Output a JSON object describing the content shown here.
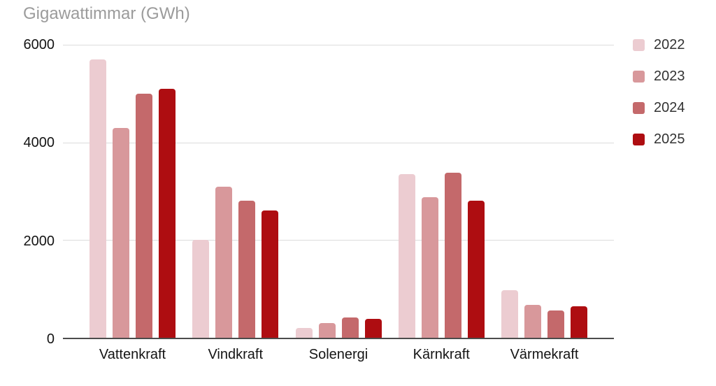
{
  "title": "Gigawattimmar (GWh)",
  "chart_data": {
    "type": "bar",
    "title": "Gigawattimmar (GWh)",
    "xlabel": "",
    "ylabel": "Gigawattimmar (GWh)",
    "categories": [
      "Vattenkraft",
      "Vindkraft",
      "Solenergi",
      "Kärnkraft",
      "Värmekraft"
    ],
    "series": [
      {
        "name": "2022",
        "color": "#ecccd1",
        "values": [
          5700,
          2000,
          200,
          3350,
          980
        ]
      },
      {
        "name": "2023",
        "color": "#d8989b",
        "values": [
          4300,
          3100,
          300,
          2880,
          680
        ]
      },
      {
        "name": "2024",
        "color": "#c4696b",
        "values": [
          5000,
          2800,
          420,
          3380,
          560
        ]
      },
      {
        "name": "2025",
        "color": "#ae0d11",
        "values": [
          5100,
          2600,
          380,
          2800,
          640
        ]
      }
    ],
    "ylim": [
      0,
      6000
    ],
    "yticks": [
      0,
      2000,
      4000,
      6000
    ],
    "grid": true,
    "legend_position": "right",
    "colors": {
      "gridline": "#dcdcdc",
      "axis_line": "#4c4c4c",
      "title_text": "#9b9b9b",
      "tick_text": "#141414",
      "legend_text": "#333333"
    }
  }
}
